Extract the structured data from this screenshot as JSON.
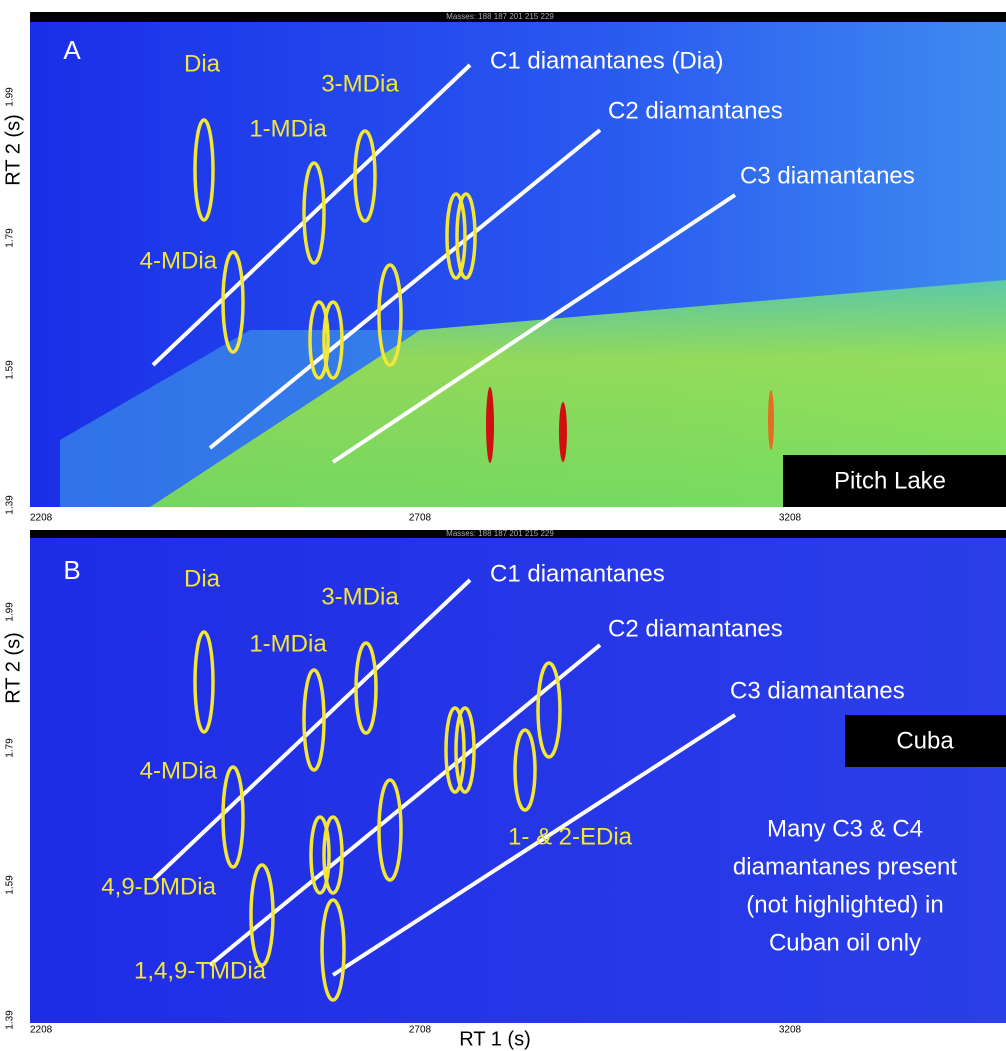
{
  "figure": {
    "x_axis_label": "RT 1 (s)",
    "panels": [
      {
        "label": "A",
        "masses": "Masses:  188 187 201 215 229",
        "y_axis_label": "RT 2 (s)",
        "xticks": [
          "2208",
          "2708",
          "3208"
        ],
        "yticks": [
          "1.99",
          "1.79",
          "1.59",
          "1.39"
        ],
        "peak_labels": [
          "Dia",
          "3-MDia",
          "1-MDia",
          "4-MDia"
        ],
        "series_labels": [
          "C1 diamantanes (Dia)",
          "C2 diamantanes",
          "C3 diamantanes"
        ],
        "sample": "Pitch Lake"
      },
      {
        "label": "B",
        "masses": "Masses:  188 187 201 215 229",
        "y_axis_label": "RT 2 (s)",
        "xticks": [
          "2208",
          "2708",
          "3208"
        ],
        "yticks": [
          "1.99",
          "1.79",
          "1.59",
          "1.39"
        ],
        "peak_labels": [
          "Dia",
          "3-MDia",
          "1-MDia",
          "4-MDia",
          "4,9-DMDia",
          "1,4,9-TMDia",
          "1- & 2-EDia"
        ],
        "series_labels": [
          "C1 diamantanes",
          "C2 diamantanes",
          "C3 diamantanes"
        ],
        "sample": "Cuba",
        "note": [
          "Many C3 & C4",
          "diamantanes present",
          "(not highlighted) in",
          "Cuban oil only"
        ]
      }
    ]
  }
}
